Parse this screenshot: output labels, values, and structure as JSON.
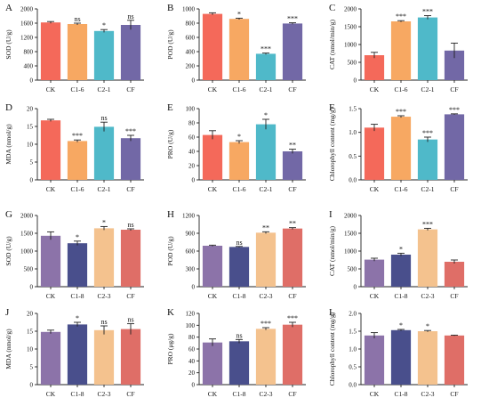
{
  "chart_data": [
    {
      "panel": "A",
      "type": "bar",
      "ylabel": "SOD (U/g)",
      "categories": [
        "CK",
        "C1-6",
        "C2-1",
        "CF"
      ],
      "values": [
        1620,
        1575,
        1380,
        1550
      ],
      "errors": [
        25,
        25,
        40,
        130
      ],
      "significance": [
        "",
        "ns",
        "*",
        "ns"
      ],
      "ylim": [
        0,
        2000
      ],
      "yticks": [
        0,
        400,
        800,
        1200,
        1600,
        2000
      ],
      "colors": [
        "#f4695a",
        "#f7a862",
        "#4fb9c9",
        "#7268a6"
      ]
    },
    {
      "panel": "B",
      "type": "bar",
      "ylabel": "POD (U/g)",
      "categories": [
        "CK",
        "C1-6",
        "C2-1",
        "CF"
      ],
      "values": [
        930,
        860,
        370,
        795
      ],
      "errors": [
        15,
        10,
        10,
        10
      ],
      "significance": [
        "",
        "*",
        "***",
        "***"
      ],
      "ylim": [
        0,
        1000
      ],
      "yticks": [
        0,
        200,
        400,
        600,
        800,
        1000
      ],
      "colors": [
        "#f4695a",
        "#f7a862",
        "#4fb9c9",
        "#7268a6"
      ]
    },
    {
      "panel": "C",
      "type": "bar",
      "ylabel": "CAT (nmol/min/g)",
      "categories": [
        "CK",
        "C1-6",
        "C2-1",
        "CF"
      ],
      "values": [
        700,
        1650,
        1760,
        830
      ],
      "errors": [
        80,
        20,
        50,
        210
      ],
      "significance": [
        "",
        "***",
        "***",
        ""
      ],
      "ylim": [
        0,
        2000
      ],
      "yticks": [
        0,
        500,
        1000,
        1500,
        2000
      ],
      "colors": [
        "#f4695a",
        "#f7a862",
        "#4fb9c9",
        "#7268a6"
      ]
    },
    {
      "panel": "D",
      "type": "bar",
      "ylabel": "MDA (nmol/g)",
      "categories": [
        "CK",
        "C1-6",
        "C2-1",
        "CF"
      ],
      "values": [
        16.7,
        10.9,
        14.9,
        11.7
      ],
      "errors": [
        0.3,
        0.3,
        1.3,
        0.8
      ],
      "significance": [
        "",
        "***",
        "ns",
        "***"
      ],
      "ylim": [
        0,
        20
      ],
      "yticks": [
        0,
        5,
        10,
        15,
        20
      ],
      "colors": [
        "#f4695a",
        "#f7a862",
        "#4fb9c9",
        "#7268a6"
      ]
    },
    {
      "panel": "E",
      "type": "bar",
      "ylabel": "PRO (U/g)",
      "categories": [
        "CK",
        "C1-6",
        "C2-1",
        "CF"
      ],
      "values": [
        63,
        53,
        78,
        40
      ],
      "errors": [
        6,
        2,
        7,
        3
      ],
      "significance": [
        "",
        "*",
        "*",
        "**"
      ],
      "ylim": [
        0,
        100
      ],
      "yticks": [
        0,
        20,
        40,
        60,
        80,
        100
      ],
      "colors": [
        "#f4695a",
        "#f7a862",
        "#4fb9c9",
        "#7268a6"
      ]
    },
    {
      "panel": "F",
      "type": "bar",
      "ylabel": "Chlorophyll content (mg/g)",
      "categories": [
        "CK",
        "C1-6",
        "C2-1",
        "CF"
      ],
      "values": [
        1.1,
        1.33,
        0.85,
        1.38
      ],
      "errors": [
        0.07,
        0.02,
        0.05,
        0.01
      ],
      "significance": [
        "",
        "***",
        "***",
        "***"
      ],
      "ylim": [
        0,
        1.5
      ],
      "yticks": [
        0,
        0.5,
        1.0,
        1.5
      ],
      "ytick_labels": [
        "0.0",
        "0.5",
        "1.0",
        "1.5"
      ],
      "colors": [
        "#f4695a",
        "#f7a862",
        "#4fb9c9",
        "#7268a6"
      ]
    },
    {
      "panel": "G",
      "type": "bar",
      "ylabel": "SOD (U/g)",
      "categories": [
        "CK",
        "C1-8",
        "C2-3",
        "CF"
      ],
      "values": [
        1430,
        1220,
        1640,
        1600
      ],
      "errors": [
        110,
        60,
        50,
        25
      ],
      "significance": [
        "",
        "*",
        "*",
        "ns"
      ],
      "ylim": [
        0,
        2000
      ],
      "yticks": [
        0,
        500,
        1000,
        1500,
        2000
      ],
      "colors": [
        "#8c73a9",
        "#494f8c",
        "#f4c28e",
        "#df6e67"
      ]
    },
    {
      "panel": "H",
      "type": "bar",
      "ylabel": "POD (U/g)",
      "categories": [
        "CK",
        "C1-8",
        "C2-3",
        "CF"
      ],
      "values": [
        690,
        670,
        910,
        980
      ],
      "errors": [
        10,
        8,
        15,
        15
      ],
      "significance": [
        "",
        "ns",
        "**",
        "**"
      ],
      "ylim": [
        0,
        1200
      ],
      "yticks": [
        0,
        300,
        600,
        900,
        1200
      ],
      "colors": [
        "#8c73a9",
        "#494f8c",
        "#f4c28e",
        "#df6e67"
      ]
    },
    {
      "panel": "I",
      "type": "bar",
      "ylabel": "CAT (nmol/min/g)",
      "categories": [
        "CK",
        "C1-8",
        "C2-3",
        "CF"
      ],
      "values": [
        760,
        900,
        1610,
        700
      ],
      "errors": [
        40,
        40,
        30,
        50
      ],
      "significance": [
        "",
        "*",
        "***",
        ""
      ],
      "ylim": [
        0,
        2000
      ],
      "yticks": [
        0,
        500,
        1000,
        1500,
        2000
      ],
      "colors": [
        "#8c73a9",
        "#494f8c",
        "#f4c28e",
        "#df6e67"
      ]
    },
    {
      "panel": "J",
      "type": "bar",
      "ylabel": "MDA (nmol/g)",
      "categories": [
        "CK",
        "C1-8",
        "C2-3",
        "CF"
      ],
      "values": [
        14.8,
        16.9,
        15.3,
        15.6
      ],
      "errors": [
        0.5,
        0.6,
        1.2,
        1.5
      ],
      "significance": [
        "",
        "*",
        "ns",
        "ns"
      ],
      "ylim": [
        0,
        20
      ],
      "yticks": [
        0,
        5,
        10,
        15,
        20
      ],
      "colors": [
        "#8c73a9",
        "#494f8c",
        "#f4c28e",
        "#df6e67"
      ]
    },
    {
      "panel": "K",
      "type": "bar",
      "ylabel": "PRO (μg/g)",
      "categories": [
        "CK",
        "C1-8",
        "C2-3",
        "CF"
      ],
      "values": [
        71,
        73,
        94,
        101
      ],
      "errors": [
        6,
        3,
        2,
        4
      ],
      "significance": [
        "",
        "ns",
        "***",
        "***"
      ],
      "ylim": [
        0,
        120
      ],
      "yticks": [
        0,
        20,
        40,
        60,
        80,
        100,
        120
      ],
      "colors": [
        "#8c73a9",
        "#494f8c",
        "#f4c28e",
        "#df6e67"
      ]
    },
    {
      "panel": "L",
      "type": "bar",
      "ylabel": "Chlorophyll content (mg/g)",
      "categories": [
        "CK",
        "C1-8",
        "C2-3",
        "CF"
      ],
      "values": [
        1.38,
        1.53,
        1.5,
        1.38
      ],
      "errors": [
        0.08,
        0.02,
        0.02,
        0.01
      ],
      "significance": [
        "",
        "*",
        "*",
        ""
      ],
      "ylim": [
        0,
        2.0
      ],
      "yticks": [
        0,
        0.5,
        1.0,
        1.5,
        2.0
      ],
      "ytick_labels": [
        "0.0",
        "0.5",
        "1.0",
        "1.5",
        "2.0"
      ],
      "colors": [
        "#8c73a9",
        "#494f8c",
        "#f4c28e",
        "#df6e67"
      ]
    }
  ]
}
